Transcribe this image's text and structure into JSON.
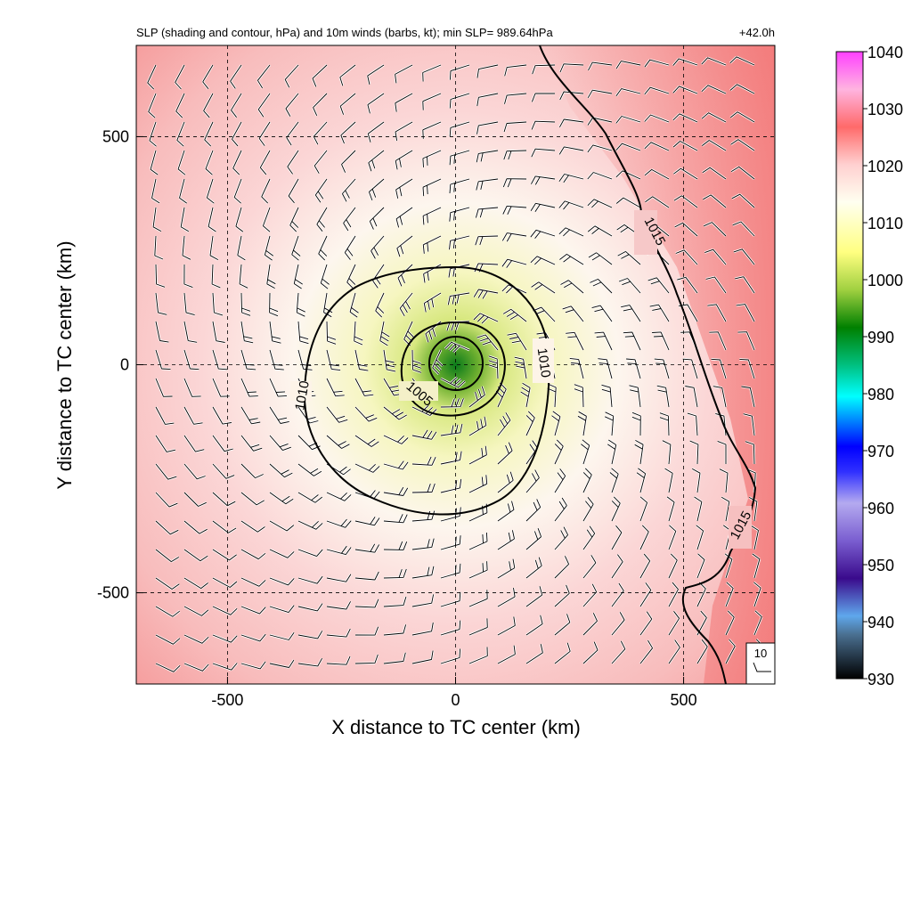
{
  "chart_data": {
    "type": "heatmap",
    "title": "SLP (shading and contour, hPa) and 10m winds (barbs, kt); min SLP= 989.64hPa",
    "forecast_time": "+42.0h",
    "xlabel": "X distance to TC center (km)",
    "ylabel": "Y distance to TC center (km)",
    "xlim": [
      -700,
      700
    ],
    "ylim": [
      -700,
      700
    ],
    "x_ticks": [
      -500,
      0,
      500
    ],
    "y_ticks": [
      -500,
      0,
      500
    ],
    "grid": true,
    "min_slp_hpa": 989.64,
    "contours": [
      {
        "level": 1005,
        "label": "1005"
      },
      {
        "level": 1010,
        "label": "1010"
      },
      {
        "level": 1015,
        "label": "1015"
      }
    ],
    "colorbar": {
      "ticks": [
        1040,
        1030,
        1020,
        1010,
        1000,
        990,
        980,
        970,
        960,
        950,
        940,
        930
      ],
      "range": [
        930,
        1040
      ],
      "colors": [
        "#000000",
        "#5fa7ec",
        "#3a0a8c",
        "#a89ee8",
        "#0000ff",
        "#00ffff",
        "#008000",
        "#ffff88",
        "#ffffff",
        "#ff6060",
        "#ffb0e0",
        "#ff44ff"
      ]
    },
    "reference_barb_label": "10"
  }
}
